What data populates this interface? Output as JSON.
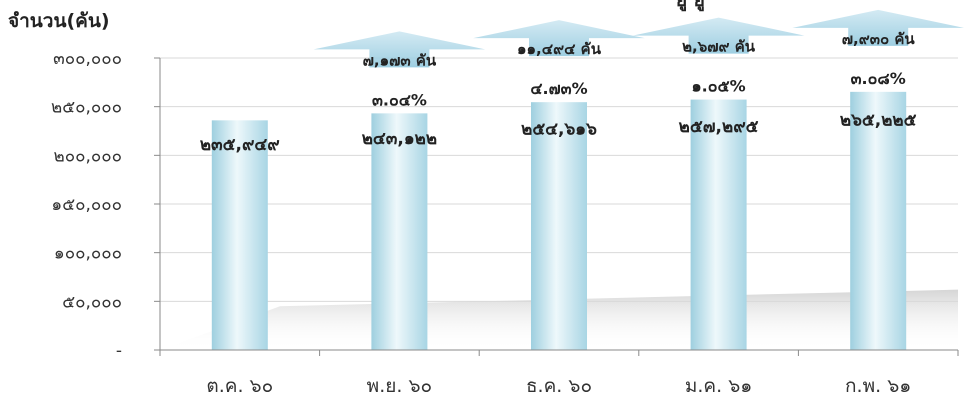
{
  "chart_data": {
    "type": "bar",
    "title": "ยู   ยู",
    "ylabel": "จำนวน(คัน)",
    "xlabel": "",
    "ylim": [
      0,
      300000
    ],
    "yticks": [
      0,
      50000,
      100000,
      150000,
      200000,
      250000,
      300000
    ],
    "ytick_labels": [
      "-",
      "๕๐,๐๐๐",
      "๑๐๐,๐๐๐",
      "๑๕๐,๐๐๐",
      "๒๐๐,๐๐๐",
      "๒๕๐,๐๐๐",
      "๓๐๐,๐๐๐"
    ],
    "grid": true,
    "categories": [
      "ต.ค. ๖๐",
      "พ.ย. ๖๐",
      "ธ.ค. ๖๐",
      "ม.ค. ๖๑",
      "ก.พ. ๖๑"
    ],
    "values": [
      235949,
      243122,
      254616,
      257295,
      265225
    ],
    "value_labels": [
      "๒๓๕,๙๔๙",
      "๒๔๓,๑๒๒",
      "๒๕๔,๖๑๖",
      "๒๕๗,๒๙๕",
      "๒๖๕,๒๒๕"
    ],
    "increase_labels": [
      "",
      "๗,๑๗๓ คัน",
      "๑๑,๔๙๔ คัน",
      "๒,๖๗๙ คัน",
      "๗,๙๓๐ คัน"
    ],
    "percent_labels": [
      "",
      "๓.๐๔%",
      "๔.๗๓%",
      "๑.๐๕%",
      "๓.๐๘%"
    ],
    "colors": {
      "bar_edge": "#9ecfdf",
      "bar_mid": "#eef8fb",
      "arrow": "#a6d4e6",
      "axis": "#8a8a8a",
      "grid": "#d9d9d9"
    }
  }
}
